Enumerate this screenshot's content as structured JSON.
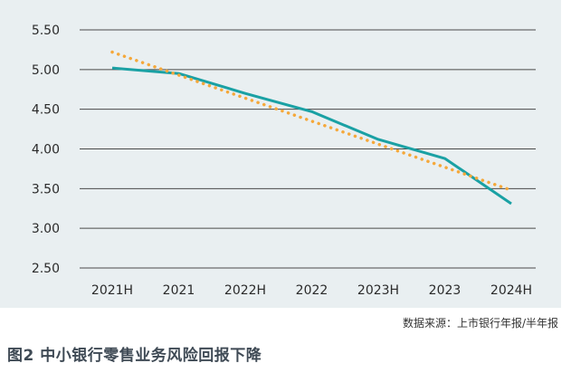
{
  "chart_data": {
    "type": "line",
    "categories": [
      "2021H",
      "2021",
      "2022H",
      "2022",
      "2023H",
      "2023",
      "2024H"
    ],
    "series": [
      {
        "values": [
          5.02,
          4.95,
          4.7,
          4.47,
          4.12,
          3.88,
          3.31
        ],
        "color": "#1aa1a4",
        "style": "solid"
      },
      {
        "values": [
          5.22,
          4.93,
          4.64,
          4.35,
          4.06,
          3.77,
          3.48
        ],
        "color": "#f5a83a",
        "style": "dotted"
      }
    ],
    "yticks": [
      "5.50",
      "5.00",
      "4.50",
      "4.00",
      "3.50",
      "3.00",
      "2.50"
    ],
    "ylim": [
      2.5,
      5.5
    ],
    "grid": true
  },
  "source_note": "数据来源：上市银行年报/半年报",
  "caption": "图2  中小银行零售业务风险回报下降",
  "colors": {
    "panel_bg": "#e9eff1",
    "grid": "#4a4a4a"
  }
}
